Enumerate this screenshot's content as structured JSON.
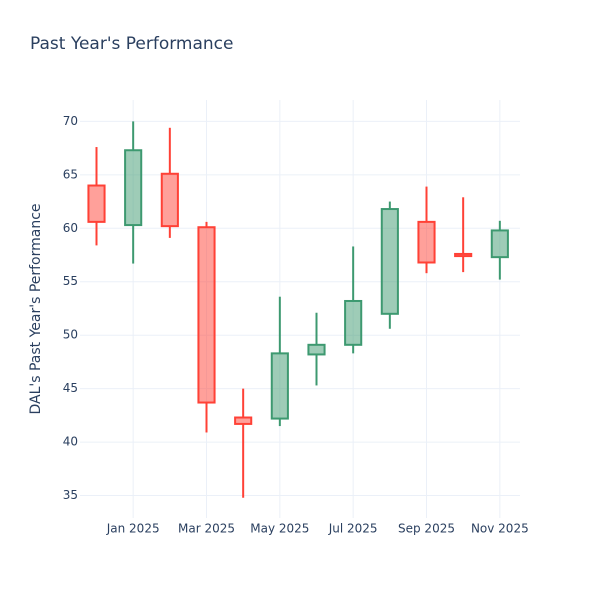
{
  "chart_data": {
    "type": "candlestick",
    "title": "Past Year's Performance",
    "y_label": "DAL's Past Year's Performance",
    "x": [
      "2024-12",
      "2025-01",
      "2025-02",
      "2025-03",
      "2025-04",
      "2025-05",
      "2025-06",
      "2025-07",
      "2025-08",
      "2025-09",
      "2025-10",
      "2025-11"
    ],
    "open": [
      64.0,
      60.3,
      65.1,
      60.1,
      42.3,
      42.2,
      48.2,
      49.1,
      52.0,
      60.6,
      57.6,
      57.3
    ],
    "high": [
      67.6,
      70.0,
      69.4,
      60.6,
      45.0,
      53.6,
      52.1,
      58.3,
      62.5,
      63.9,
      62.9,
      60.7
    ],
    "low": [
      58.4,
      56.7,
      59.1,
      40.9,
      34.8,
      41.5,
      45.3,
      48.3,
      50.6,
      55.8,
      55.9,
      55.2
    ],
    "close": [
      60.6,
      67.3,
      60.2,
      43.7,
      41.7,
      48.3,
      49.1,
      53.2,
      61.8,
      56.8,
      57.4,
      59.8
    ],
    "increasing_color": "#3d9970",
    "decreasing_color": "#ff4136",
    "ylim": [
      32.9,
      72
    ],
    "yticks": [
      35,
      40,
      45,
      50,
      55,
      60,
      65,
      70
    ],
    "xticks": [
      {
        "value": "2025-01",
        "label": "Jan 2025"
      },
      {
        "value": "2025-03",
        "label": "Mar 2025"
      },
      {
        "value": "2025-05",
        "label": "May 2025"
      },
      {
        "value": "2025-07",
        "label": "Jul 2025"
      },
      {
        "value": "2025-09",
        "label": "Sep 2025"
      },
      {
        "value": "2025-11",
        "label": "Nov 2025"
      }
    ],
    "grid": true
  }
}
